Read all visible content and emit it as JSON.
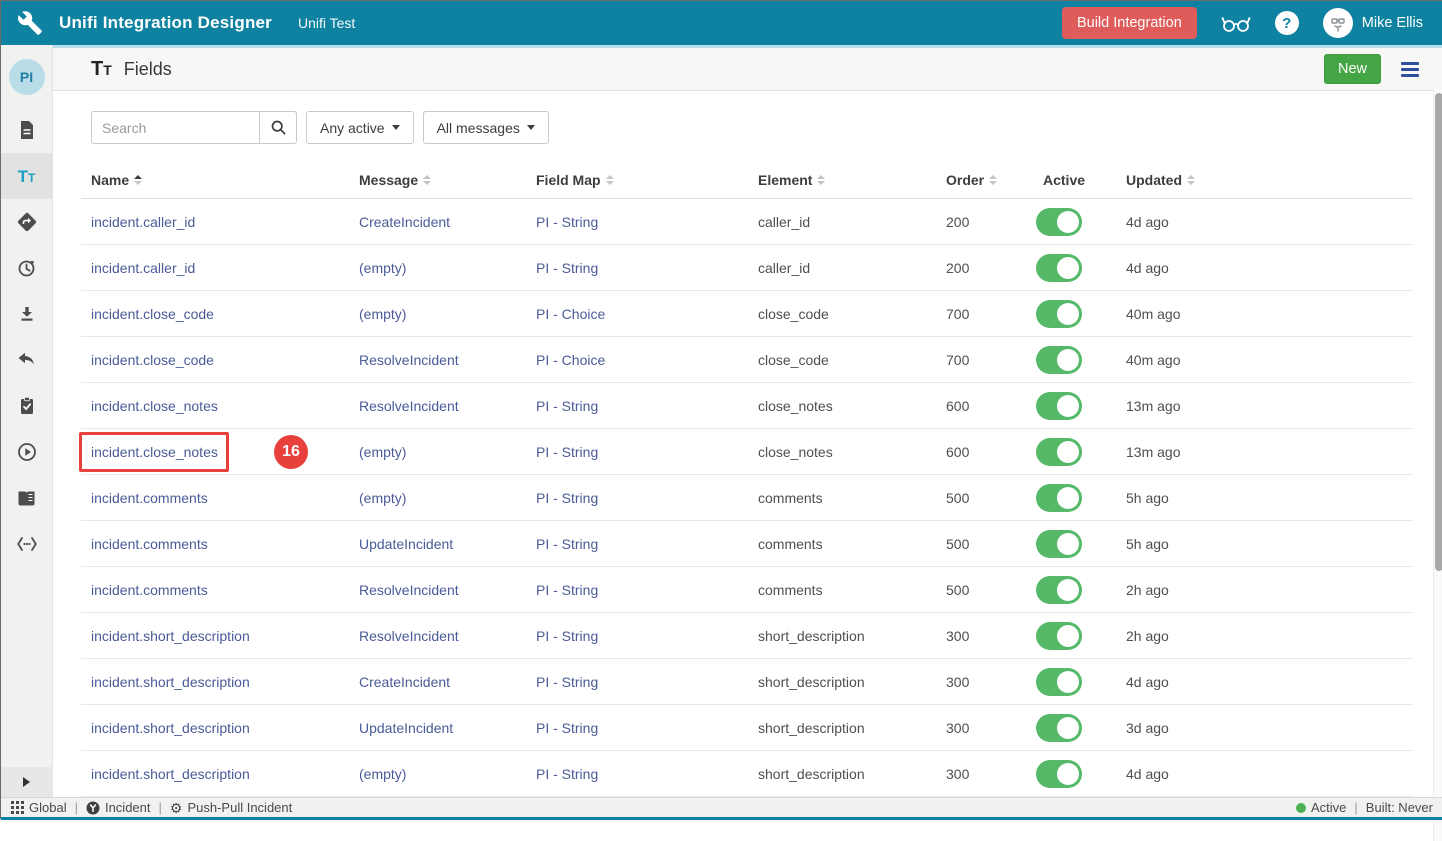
{
  "appbar": {
    "title": "Unifi Integration Designer",
    "subtitle": "Unifi Test",
    "build_button": "Build Integration",
    "user_name": "Mike Ellis"
  },
  "sidebar": {
    "avatar_label": "PI",
    "icons": [
      "document-icon",
      "fields-text-icon",
      "diamond-arrow-icon",
      "history-icon",
      "download-icon",
      "reply-icon",
      "clipboard-check-icon",
      "play-circle-icon",
      "book-icon",
      "code-icon",
      "collapse-arrow-icon"
    ],
    "active_item": "fields"
  },
  "page": {
    "title": "Fields",
    "new_button": "New"
  },
  "toolbar": {
    "search_placeholder": "Search",
    "active_filter": "Any active",
    "message_filter": "All messages"
  },
  "table": {
    "columns": [
      {
        "label": "Name",
        "sortable": true,
        "sorted": "asc"
      },
      {
        "label": "Message",
        "sortable": true,
        "sorted": null
      },
      {
        "label": "Field Map",
        "sortable": true,
        "sorted": null
      },
      {
        "label": "Element",
        "sortable": true,
        "sorted": null
      },
      {
        "label": "Order",
        "sortable": true,
        "sorted": null
      },
      {
        "label": "Active",
        "sortable": false,
        "sorted": null
      },
      {
        "label": "Updated",
        "sortable": true,
        "sorted": null
      }
    ],
    "rows": [
      {
        "name": "incident.caller_id",
        "message": "CreateIncident",
        "field_map": "PI - String",
        "element": "caller_id",
        "order": "200",
        "active": true,
        "updated": "4d ago"
      },
      {
        "name": "incident.caller_id",
        "message": "(empty)",
        "field_map": "PI - String",
        "element": "caller_id",
        "order": "200",
        "active": true,
        "updated": "4d ago"
      },
      {
        "name": "incident.close_code",
        "message": "(empty)",
        "field_map": "PI - Choice",
        "element": "close_code",
        "order": "700",
        "active": true,
        "updated": "40m ago"
      },
      {
        "name": "incident.close_code",
        "message": "ResolveIncident",
        "field_map": "PI - Choice",
        "element": "close_code",
        "order": "700",
        "active": true,
        "updated": "40m ago"
      },
      {
        "name": "incident.close_notes",
        "message": "ResolveIncident",
        "field_map": "PI - String",
        "element": "close_notes",
        "order": "600",
        "active": true,
        "updated": "13m ago"
      },
      {
        "name": "incident.close_notes",
        "message": "(empty)",
        "field_map": "PI - String",
        "element": "close_notes",
        "order": "600",
        "active": true,
        "updated": "13m ago"
      },
      {
        "name": "incident.comments",
        "message": "(empty)",
        "field_map": "PI - String",
        "element": "comments",
        "order": "500",
        "active": true,
        "updated": "5h ago"
      },
      {
        "name": "incident.comments",
        "message": "UpdateIncident",
        "field_map": "PI - String",
        "element": "comments",
        "order": "500",
        "active": true,
        "updated": "5h ago"
      },
      {
        "name": "incident.comments",
        "message": "ResolveIncident",
        "field_map": "PI - String",
        "element": "comments",
        "order": "500",
        "active": true,
        "updated": "2h ago"
      },
      {
        "name": "incident.short_description",
        "message": "ResolveIncident",
        "field_map": "PI - String",
        "element": "short_description",
        "order": "300",
        "active": true,
        "updated": "2h ago"
      },
      {
        "name": "incident.short_description",
        "message": "CreateIncident",
        "field_map": "PI - String",
        "element": "short_description",
        "order": "300",
        "active": true,
        "updated": "4d ago"
      },
      {
        "name": "incident.short_description",
        "message": "UpdateIncident",
        "field_map": "PI - String",
        "element": "short_description",
        "order": "300",
        "active": true,
        "updated": "3d ago"
      },
      {
        "name": "incident.short_description",
        "message": "(empty)",
        "field_map": "PI - String",
        "element": "short_description",
        "order": "300",
        "active": true,
        "updated": "4d ago"
      }
    ],
    "annotation": {
      "row_index": 5,
      "badge": "16"
    }
  },
  "statusbar": {
    "scope": "Global",
    "process": "Incident",
    "integration": "Push-Pull Incident",
    "status": "Active",
    "built": "Built: Never"
  },
  "colors": {
    "header_teal": "#0e82a0",
    "build_button_red": "#e05c5a",
    "new_button_green": "#44a544",
    "toggle_green": "#56b968",
    "link_blue": "#4a5b97",
    "annotation_red": "#e8403a"
  }
}
